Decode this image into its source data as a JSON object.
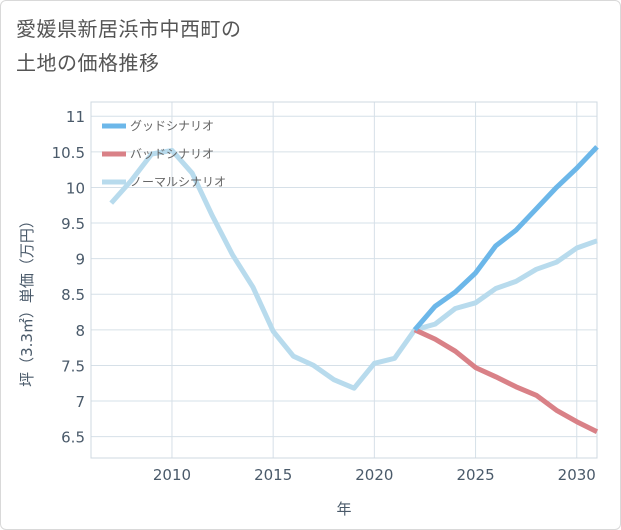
{
  "title_lines": [
    "愛媛県新居浜市中西町の",
    "土地の価格推移"
  ],
  "chart_data": {
    "type": "line",
    "xlabel": "年",
    "ylabel": "坪（3.3㎡）単価（万円）",
    "xlim": [
      2006,
      2031
    ],
    "ylim": [
      6.2,
      11.2
    ],
    "xticks": [
      2010,
      2015,
      2020,
      2025,
      2030
    ],
    "yticks": [
      6.5,
      7,
      7.5,
      8,
      8.5,
      9,
      9.5,
      10,
      10.5,
      11
    ],
    "grid": true,
    "legend_position": "top-left",
    "series": [
      {
        "name": "グッドシナリオ",
        "color": "#6cb7e9",
        "x": [
          2022,
          2023,
          2024,
          2025,
          2026,
          2027,
          2028,
          2029,
          2030,
          2031
        ],
        "y": [
          8.0,
          8.33,
          8.53,
          8.8,
          9.18,
          9.4,
          9.7,
          10.0,
          10.27,
          10.57
        ]
      },
      {
        "name": "バッドシナリオ",
        "color": "#d98187",
        "x": [
          2022,
          2023,
          2024,
          2025,
          2026,
          2027,
          2028,
          2029,
          2030,
          2031
        ],
        "y": [
          8.0,
          7.87,
          7.7,
          7.47,
          7.34,
          7.2,
          7.08,
          6.87,
          6.71,
          6.57
        ]
      },
      {
        "name": "ノーマルシナリオ",
        "color": "#b8dbed",
        "x": [
          2007,
          2008,
          2009,
          2010,
          2011,
          2012,
          2013,
          2014,
          2015,
          2016,
          2017,
          2018,
          2019,
          2020,
          2021,
          2022,
          2023,
          2024,
          2025,
          2026,
          2027,
          2028,
          2029,
          2030,
          2031
        ],
        "y": [
          9.78,
          10.1,
          10.47,
          10.52,
          10.2,
          9.6,
          9.05,
          8.6,
          7.98,
          7.63,
          7.5,
          7.3,
          7.18,
          7.53,
          7.6,
          8.0,
          8.08,
          8.3,
          8.38,
          8.58,
          8.68,
          8.85,
          8.95,
          9.15,
          9.25
        ]
      }
    ]
  }
}
